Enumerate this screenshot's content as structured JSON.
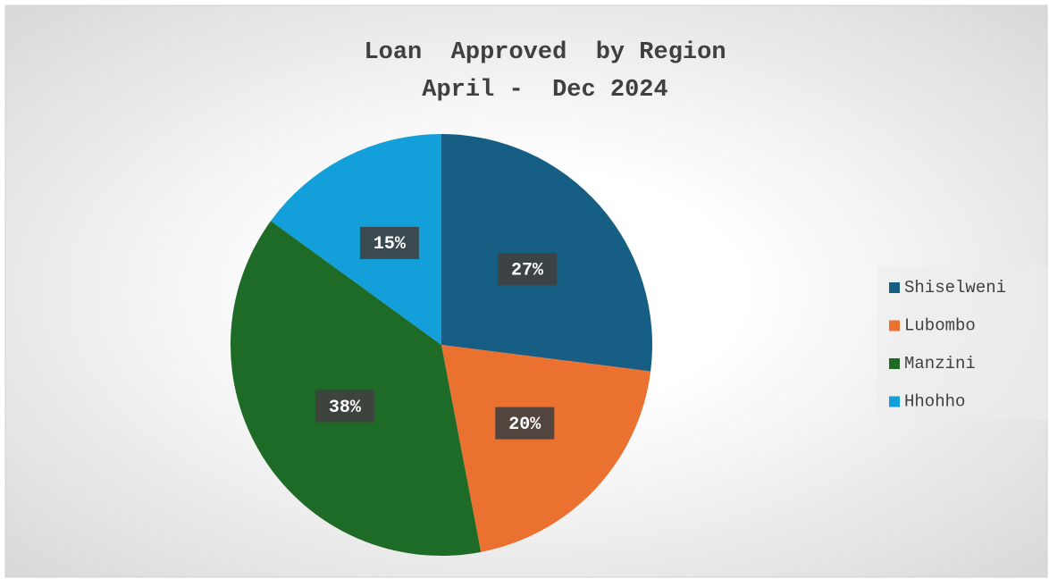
{
  "chart_data": {
    "type": "pie",
    "title": [
      "Loan  Approved  by Region",
      "April -  Dec 2024"
    ],
    "categories": [
      "Shiselweni",
      "Lubombo",
      "Manzini",
      "Hhohho"
    ],
    "values": [
      27,
      20,
      38,
      15
    ],
    "value_labels": [
      "27%",
      "20%",
      "38%",
      "15%"
    ],
    "colors": [
      "#175e84",
      "#ea7130",
      "#1e6b27",
      "#139fd9"
    ],
    "legend": "right"
  }
}
